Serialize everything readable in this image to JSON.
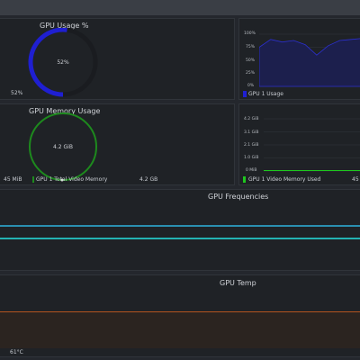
{
  "gpu_usage": {
    "title": "GPU Usage %",
    "gauge_value": "52%",
    "gauge_percent": 52,
    "bottom_value": "52%",
    "color": "#1f1fd1"
  },
  "gpu_usage_chart": {
    "y_ticks": [
      "100%",
      "75%",
      "50%",
      "25%",
      "0%"
    ],
    "legend": "GPU 1 Usage",
    "color": "#1f1fd1"
  },
  "gpu_memory": {
    "title": "GPU Memory Usage",
    "gauge_value": "4.2 GiB",
    "color": "#1d8a1d",
    "footer_left": "45 MiB",
    "footer_legend": "GPU 1 Total Video Memory",
    "footer_right": "4.2 GB"
  },
  "gpu_memory_chart": {
    "y_ticks": [
      "4.2 GiB",
      "3.1 GiB",
      "2.1 GiB",
      "1.0 GiB",
      "0 MiB"
    ],
    "legend": "GPU 1 Video Memory Used",
    "legend_value": "45",
    "color": "#1ec81e"
  },
  "gpu_frequencies": {
    "title": "GPU Frequencies",
    "line_color_1": "#2a8fb0",
    "line_color_2": "#23b3b3"
  },
  "gpu_temp": {
    "title": "GPU Temp",
    "value": "61°C",
    "color": "#b4541f"
  },
  "chart_data": [
    {
      "type": "area",
      "ylim": [
        0,
        100
      ],
      "y_ticks": [
        "100%",
        "75%",
        "50%",
        "25%",
        "0%"
      ],
      "series": [
        {
          "name": "GPU 1 Usage",
          "values": [
            75,
            90,
            85,
            88,
            80,
            60,
            78,
            88,
            90,
            92
          ]
        }
      ]
    },
    {
      "type": "line",
      "y_ticks": [
        "4.2 GiB",
        "3.1 GiB",
        "2.1 GiB",
        "1.0 GiB",
        "0 MiB"
      ],
      "series": [
        {
          "name": "GPU 1 Video Memory Used",
          "values": [
            0.044,
            0.044,
            0.044,
            0.044,
            0.044
          ]
        }
      ]
    }
  ]
}
